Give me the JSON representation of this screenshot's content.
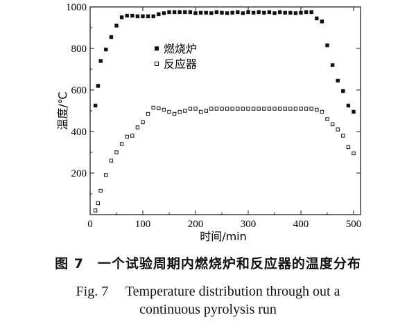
{
  "chart_data": {
    "type": "scatter",
    "xlabel": "时间/min",
    "ylabel": "温度/℃",
    "xlim": [
      0,
      500
    ],
    "ylim": [
      0,
      1000
    ],
    "xticks": [
      0,
      100,
      200,
      300,
      400,
      500
    ],
    "yticks": [
      200,
      400,
      600,
      800,
      1000
    ],
    "grid": false,
    "legend_position": "upper-left inside plot",
    "series": [
      {
        "name": "燃烧炉",
        "marker": "filled-square",
        "x": [
          10,
          15,
          20,
          30,
          40,
          50,
          60,
          70,
          80,
          90,
          100,
          110,
          120,
          130,
          140,
          150,
          160,
          170,
          180,
          190,
          200,
          210,
          220,
          230,
          240,
          250,
          260,
          270,
          280,
          290,
          300,
          310,
          320,
          330,
          340,
          350,
          360,
          370,
          380,
          390,
          400,
          410,
          420,
          430,
          440,
          450,
          460,
          470,
          480,
          490,
          500
        ],
        "y": [
          525,
          620,
          740,
          795,
          855,
          910,
          950,
          958,
          958,
          955,
          955,
          955,
          955,
          965,
          970,
          975,
          975,
          975,
          975,
          975,
          970,
          972,
          972,
          970,
          975,
          972,
          970,
          972,
          975,
          970,
          975,
          972,
          975,
          972,
          975,
          970,
          975,
          972,
          972,
          970,
          972,
          975,
          975,
          945,
          930,
          815,
          720,
          645,
          595,
          525,
          495
        ]
      },
      {
        "name": "反应器",
        "marker": "hollow-square",
        "x": [
          10,
          15,
          20,
          30,
          40,
          50,
          60,
          70,
          80,
          90,
          100,
          110,
          120,
          130,
          140,
          150,
          160,
          170,
          180,
          190,
          200,
          210,
          220,
          230,
          240,
          250,
          260,
          270,
          280,
          290,
          300,
          310,
          320,
          330,
          340,
          350,
          360,
          370,
          380,
          390,
          400,
          410,
          420,
          430,
          440,
          450,
          460,
          470,
          480,
          490,
          500
        ],
        "y": [
          20,
          55,
          115,
          190,
          260,
          300,
          340,
          375,
          380,
          420,
          445,
          485,
          515,
          512,
          505,
          495,
          485,
          495,
          500,
          510,
          510,
          495,
          500,
          510,
          510,
          510,
          510,
          510,
          510,
          510,
          510,
          510,
          510,
          510,
          510,
          510,
          510,
          510,
          510,
          510,
          510,
          510,
          510,
          505,
          495,
          460,
          435,
          410,
          380,
          325,
          295
        ]
      }
    ]
  },
  "caption": {
    "cn": "图 7　一个试验周期内燃烧炉和反应器的温度分布",
    "en_line1": "Fig. 7　 Temperature distribution through out a",
    "en_line2": "continuous pyrolysis run"
  }
}
